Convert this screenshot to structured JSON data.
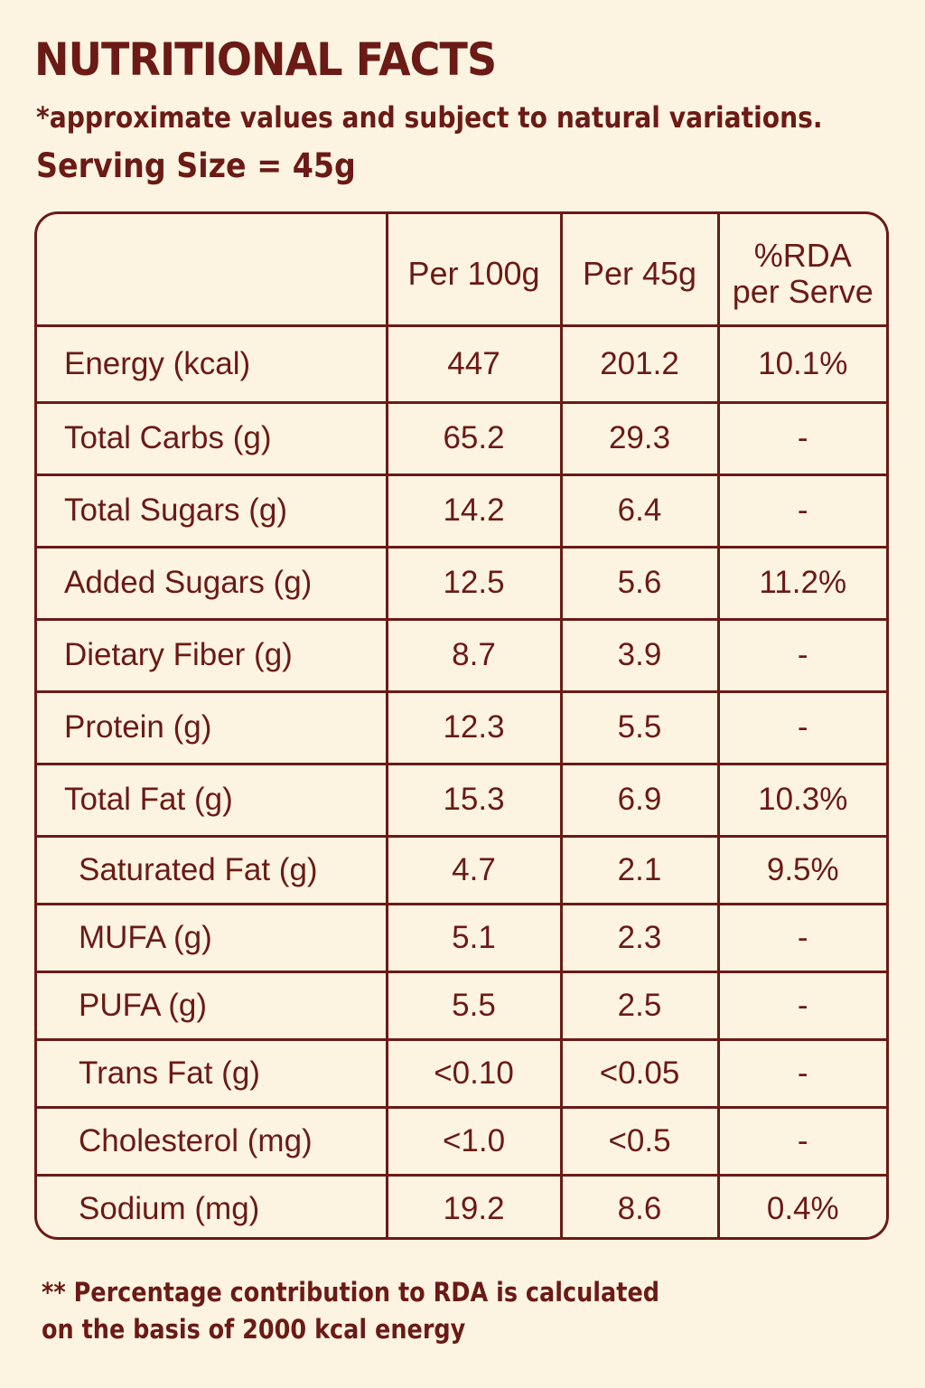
{
  "title": "NUTRITIONAL FACTS",
  "subtitle": "*approximate values and subject to natural variations.",
  "serving_size": "Serving Size = 45g",
  "table": {
    "headers": [
      "",
      "Per 100g",
      "Per 45g",
      "%RDA",
      "per Serve"
    ],
    "rows": [
      {
        "label": "Energy (kcal)",
        "per100": "447",
        "per45": "201.2",
        "rda": "10.1%"
      },
      {
        "label": "Total Carbs (g)",
        "per100": "65.2",
        "per45": "29.3",
        "rda": "-"
      },
      {
        "label": "Total Sugars (g)",
        "per100": "14.2",
        "per45": "6.4",
        "rda": "-"
      },
      {
        "label": "Added Sugars (g)",
        "per100": "12.5",
        "per45": "5.6",
        "rda": "11.2%"
      },
      {
        "label": "Dietary Fiber (g)",
        "per100": "8.7",
        "per45": "3.9",
        "rda": "-"
      },
      {
        "label": "Protein (g)",
        "per100": "12.3",
        "per45": "5.5",
        "rda": "-"
      },
      {
        "label": "Total Fat (g)",
        "per100": "15.3",
        "per45": "6.9",
        "rda": "10.3%"
      },
      {
        "label": "Saturated Fat (g)",
        "per100": "4.7",
        "per45": "2.1",
        "rda": "9.5%"
      },
      {
        "label": "MUFA (g)",
        "per100": "5.1",
        "per45": "2.3",
        "rda": "-"
      },
      {
        "label": "PUFA (g)",
        "per100": "5.5",
        "per45": "2.5",
        "rda": "-"
      },
      {
        "label": "Trans Fat (g)",
        "per100": "<0.10",
        "per45": "<0.05",
        "rda": "-"
      },
      {
        "label": "Cholesterol (mg)",
        "per100": "<1.0",
        "per45": "<0.5",
        "rda": "-"
      },
      {
        "label": "Sodium (mg)",
        "per100": "19.2",
        "per45": "8.6",
        "rda": "0.4%"
      }
    ]
  },
  "footnote": {
    "line1": "** Percentage contribution to RDA is calculated",
    "line2": "on the basis of 2000 kcal energy"
  },
  "colors": {
    "background": "#fcf4e1",
    "text": "#6b1a16",
    "border": "#6b1a16"
  }
}
